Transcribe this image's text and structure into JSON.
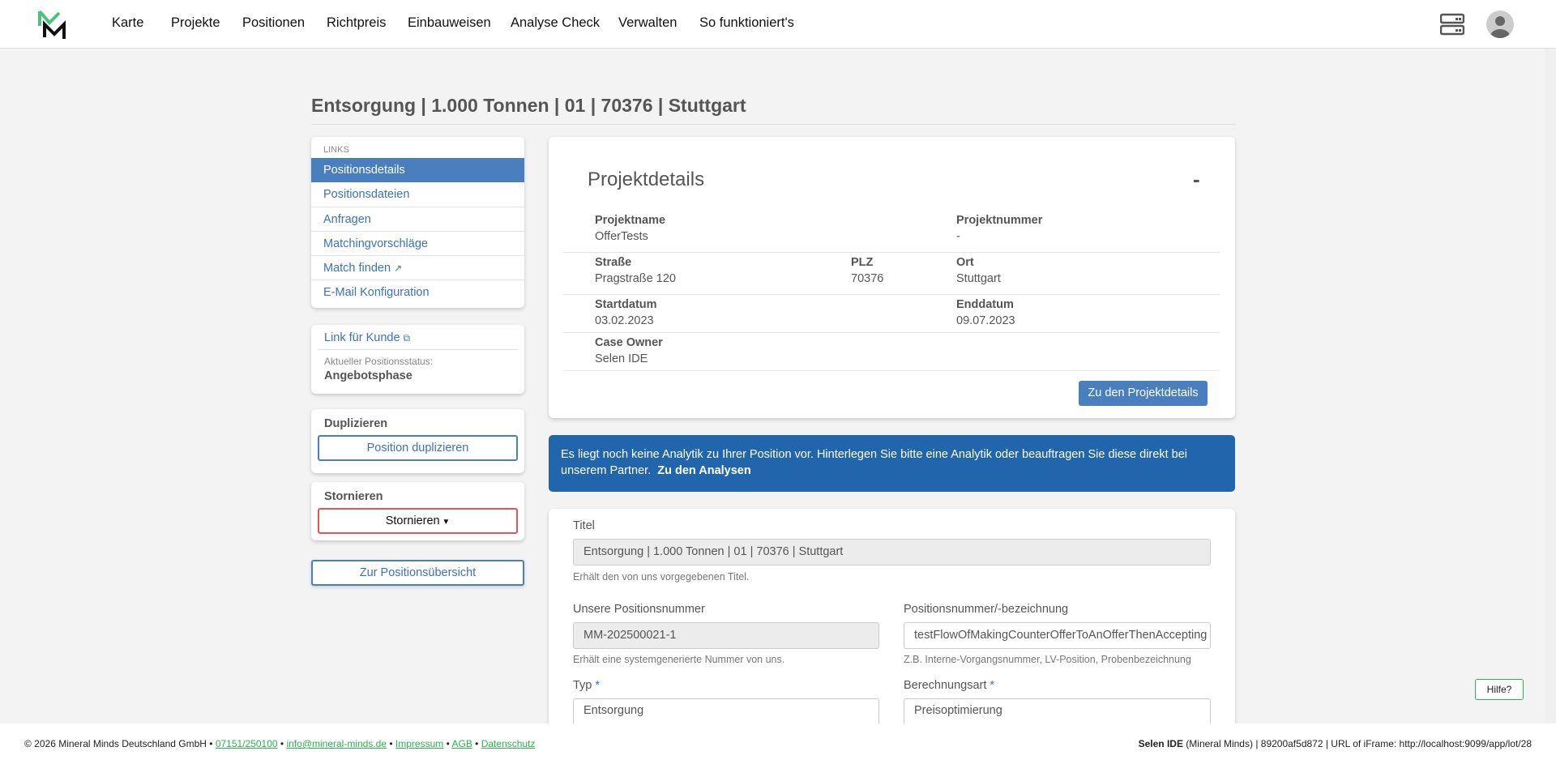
{
  "nav": {
    "items": [
      "Karte",
      "Projekte",
      "Positionen",
      "Richtpreis",
      "Einbauweisen",
      "Analyse Check",
      "Verwalten",
      "So funktioniert's"
    ]
  },
  "page": {
    "title": "Entsorgung | 1.000 Tonnen | 01 | 70376 | Stuttgart"
  },
  "sidebar": {
    "links_header": "LINKS",
    "links": [
      "Positionsdetails",
      "Positionsdateien",
      "Anfragen",
      "Matchingvorschläge",
      "Match finden",
      "E-Mail Konfiguration"
    ],
    "customer_link": "Link für Kunde",
    "status_label": "Aktueller Positionsstatus:",
    "status_value": "Angebotsphase",
    "duplicate_header": "Duplizieren",
    "duplicate_button": "Position duplizieren",
    "cancel_header": "Stornieren",
    "cancel_button": "Stornieren",
    "overview_button": "Zur Positionsübersicht"
  },
  "project": {
    "heading": "Projektdetails",
    "collapse": "-",
    "projektname_label": "Projektname",
    "projektname": "OfferTests",
    "projektnummer_label": "Projektnummer",
    "projektnummer": "-",
    "strasse_label": "Straße",
    "strasse": "Pragstraße 120",
    "plz_label": "PLZ",
    "plz": "70376",
    "ort_label": "Ort",
    "ort": "Stuttgart",
    "start_label": "Startdatum",
    "start": "03.02.2023",
    "end_label": "Enddatum",
    "end": "09.07.2023",
    "owner_label": "Case Owner",
    "owner": "Selen IDE",
    "button": "Zu den Projektdetails"
  },
  "banner": {
    "text": "Es liegt noch keine Analytik zu Ihrer Position vor. Hinterlegen Sie bitte eine Analytik oder beauftragen Sie diese direkt bei unserem Partner.",
    "link": "Zu den Analysen"
  },
  "form": {
    "titel_label": "Titel",
    "titel": "Entsorgung | 1.000 Tonnen | 01 | 70376 | Stuttgart",
    "titel_help": "Erhält den von uns vorgegebenen Titel.",
    "posnr_label": "Unsere Positionsnummer",
    "posnr": "MM-202500021-1",
    "posnr_help": "Erhält eine systemgenerierte Nummer von uns.",
    "bez_label": "Positionsnummer/-bezeichnung",
    "bez": "testFlowOfMakingCounterOfferToAnOfferThenAccepting",
    "bez_help": "Z.B. Interne-Vorgangsnummer, LV-Position, Probenbezeichnung",
    "typ_label": "Typ",
    "typ": "Entsorgung",
    "calc_label": "Berechnungsart",
    "calc": "Preisoptimierung",
    "required": "*"
  },
  "footer": {
    "copyright": "© 2026 Mineral Minds Deutschland GmbH •",
    "phone": "07151/250100",
    "email": "info@mineral-minds.de",
    "impressum": "Impressum",
    "agb": "AGB",
    "datenschutz": "Datenschutz",
    "sep": "•",
    "user": "Selen IDE",
    "right": "(Mineral Minds) | 89200af5d872 | URL of iFrame: http://localhost:9099/app/lot/28"
  },
  "help": "Hilfe?"
}
